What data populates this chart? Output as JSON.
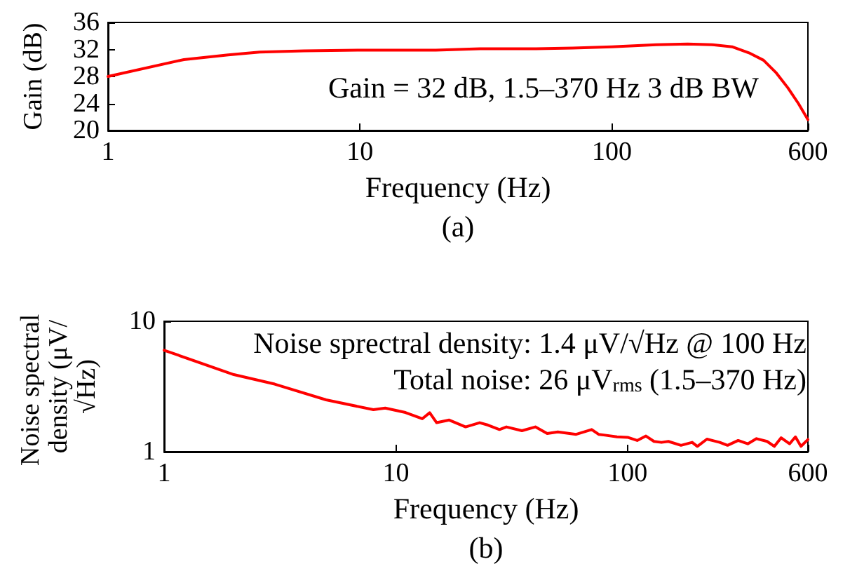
{
  "chart_data": [
    {
      "type": "line",
      "title": "(a)",
      "xlabel": "Frequency (Hz)",
      "ylabel": "Gain (dB)",
      "log": "x",
      "xlim": [
        1,
        600
      ],
      "xticks": [
        1,
        10,
        100,
        600
      ],
      "ylim": [
        20,
        36
      ],
      "yticks": [
        20,
        24,
        28,
        32,
        36
      ],
      "annotations": [
        "Gain = 32 dB, 1.5–370 Hz 3 dB BW"
      ],
      "series": [
        {
          "color": "#ff0000",
          "x": [
            1,
            2,
            3,
            4,
            6,
            10,
            20,
            30,
            50,
            70,
            100,
            150,
            200,
            250,
            300,
            350,
            400,
            450,
            500,
            550,
            600
          ],
          "values": [
            28.0,
            30.5,
            31.2,
            31.6,
            31.8,
            31.9,
            31.9,
            32.1,
            32.1,
            32.2,
            32.4,
            32.7,
            32.8,
            32.7,
            32.4,
            31.5,
            30.4,
            28.5,
            26.3,
            24.0,
            21.6
          ]
        }
      ]
    },
    {
      "type": "line",
      "title": "(b)",
      "xlabel": "Frequency (Hz)",
      "ylabel": "Noise spectral density (μV/√Hz)",
      "log": "xy",
      "xlim": [
        1,
        600
      ],
      "xticks": [
        1,
        10,
        100,
        600
      ],
      "ylim": [
        1,
        10
      ],
      "yticks": [
        1,
        10
      ],
      "annotations": [
        "Noise sprectral density: 1.4 μV/√Hz @ 100 Hz",
        "Total noise: 26 μV$_{rms}$ (1.5–370 Hz)"
      ],
      "series": [
        {
          "color": "#ff0000",
          "x": [
            1,
            2,
            3,
            5,
            8,
            9,
            11,
            13,
            14,
            15,
            17,
            20,
            23,
            25,
            28,
            30,
            35,
            40,
            45,
            50,
            60,
            70,
            75,
            80,
            90,
            100,
            110,
            120,
            130,
            140,
            150,
            170,
            190,
            200,
            220,
            250,
            270,
            300,
            330,
            360,
            400,
            430,
            460,
            500,
            530,
            560,
            600
          ],
          "values": [
            6.0,
            3.9,
            3.3,
            2.5,
            2.1,
            2.16,
            2.0,
            1.79,
            1.99,
            1.67,
            1.75,
            1.55,
            1.67,
            1.6,
            1.48,
            1.55,
            1.45,
            1.55,
            1.38,
            1.42,
            1.36,
            1.48,
            1.36,
            1.34,
            1.3,
            1.29,
            1.22,
            1.32,
            1.2,
            1.18,
            1.2,
            1.12,
            1.18,
            1.1,
            1.25,
            1.18,
            1.12,
            1.22,
            1.15,
            1.26,
            1.2,
            1.1,
            1.28,
            1.15,
            1.3,
            1.1,
            1.24
          ]
        }
      ]
    }
  ]
}
